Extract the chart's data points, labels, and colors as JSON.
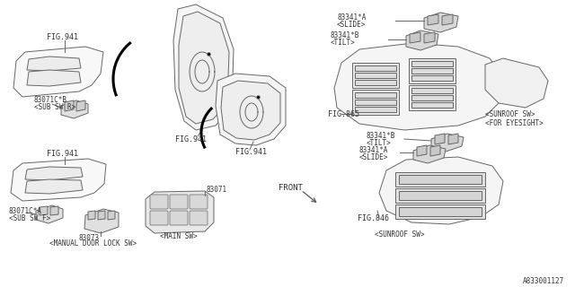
{
  "bg_color": "#ffffff",
  "line_color": "#666666",
  "text_color": "#333333",
  "fig_id": "A833001127",
  "labels": {
    "fig941_a": "FIG.941",
    "fig941_b": "FIG.941",
    "fig941_c": "FIG.941",
    "fig865": "FIG.865",
    "fig846": "FIG.846",
    "part_83071cb": "83071C*B",
    "subswr": "<SUB SW R>",
    "part_83071ca": "83071C*A",
    "subswf": "<SUB SW F>",
    "part_83071": "83071",
    "mainsw": "<MAIN SW>",
    "part_83073": "83073",
    "manualdoor": "<MANUAL DOOR LOCK SW>",
    "part_83341a_top": "83341*A",
    "slide_top": "<SLIDE>",
    "part_83341b_top": "83341*B",
    "tilt_top": "<TILT>",
    "sunroofsw_eyesight": "<SUNROOF SW>",
    "for_eyesight": "<FOR EYESIGHT>",
    "part_83341b_bot": "83341*B",
    "tilt_bot": "<TILT>",
    "part_83341a_bot": "83341*A",
    "slide_bot": "<SLIDE>",
    "sunroofsw": "<SUNROOF SW>",
    "front_label": "FRONT"
  }
}
